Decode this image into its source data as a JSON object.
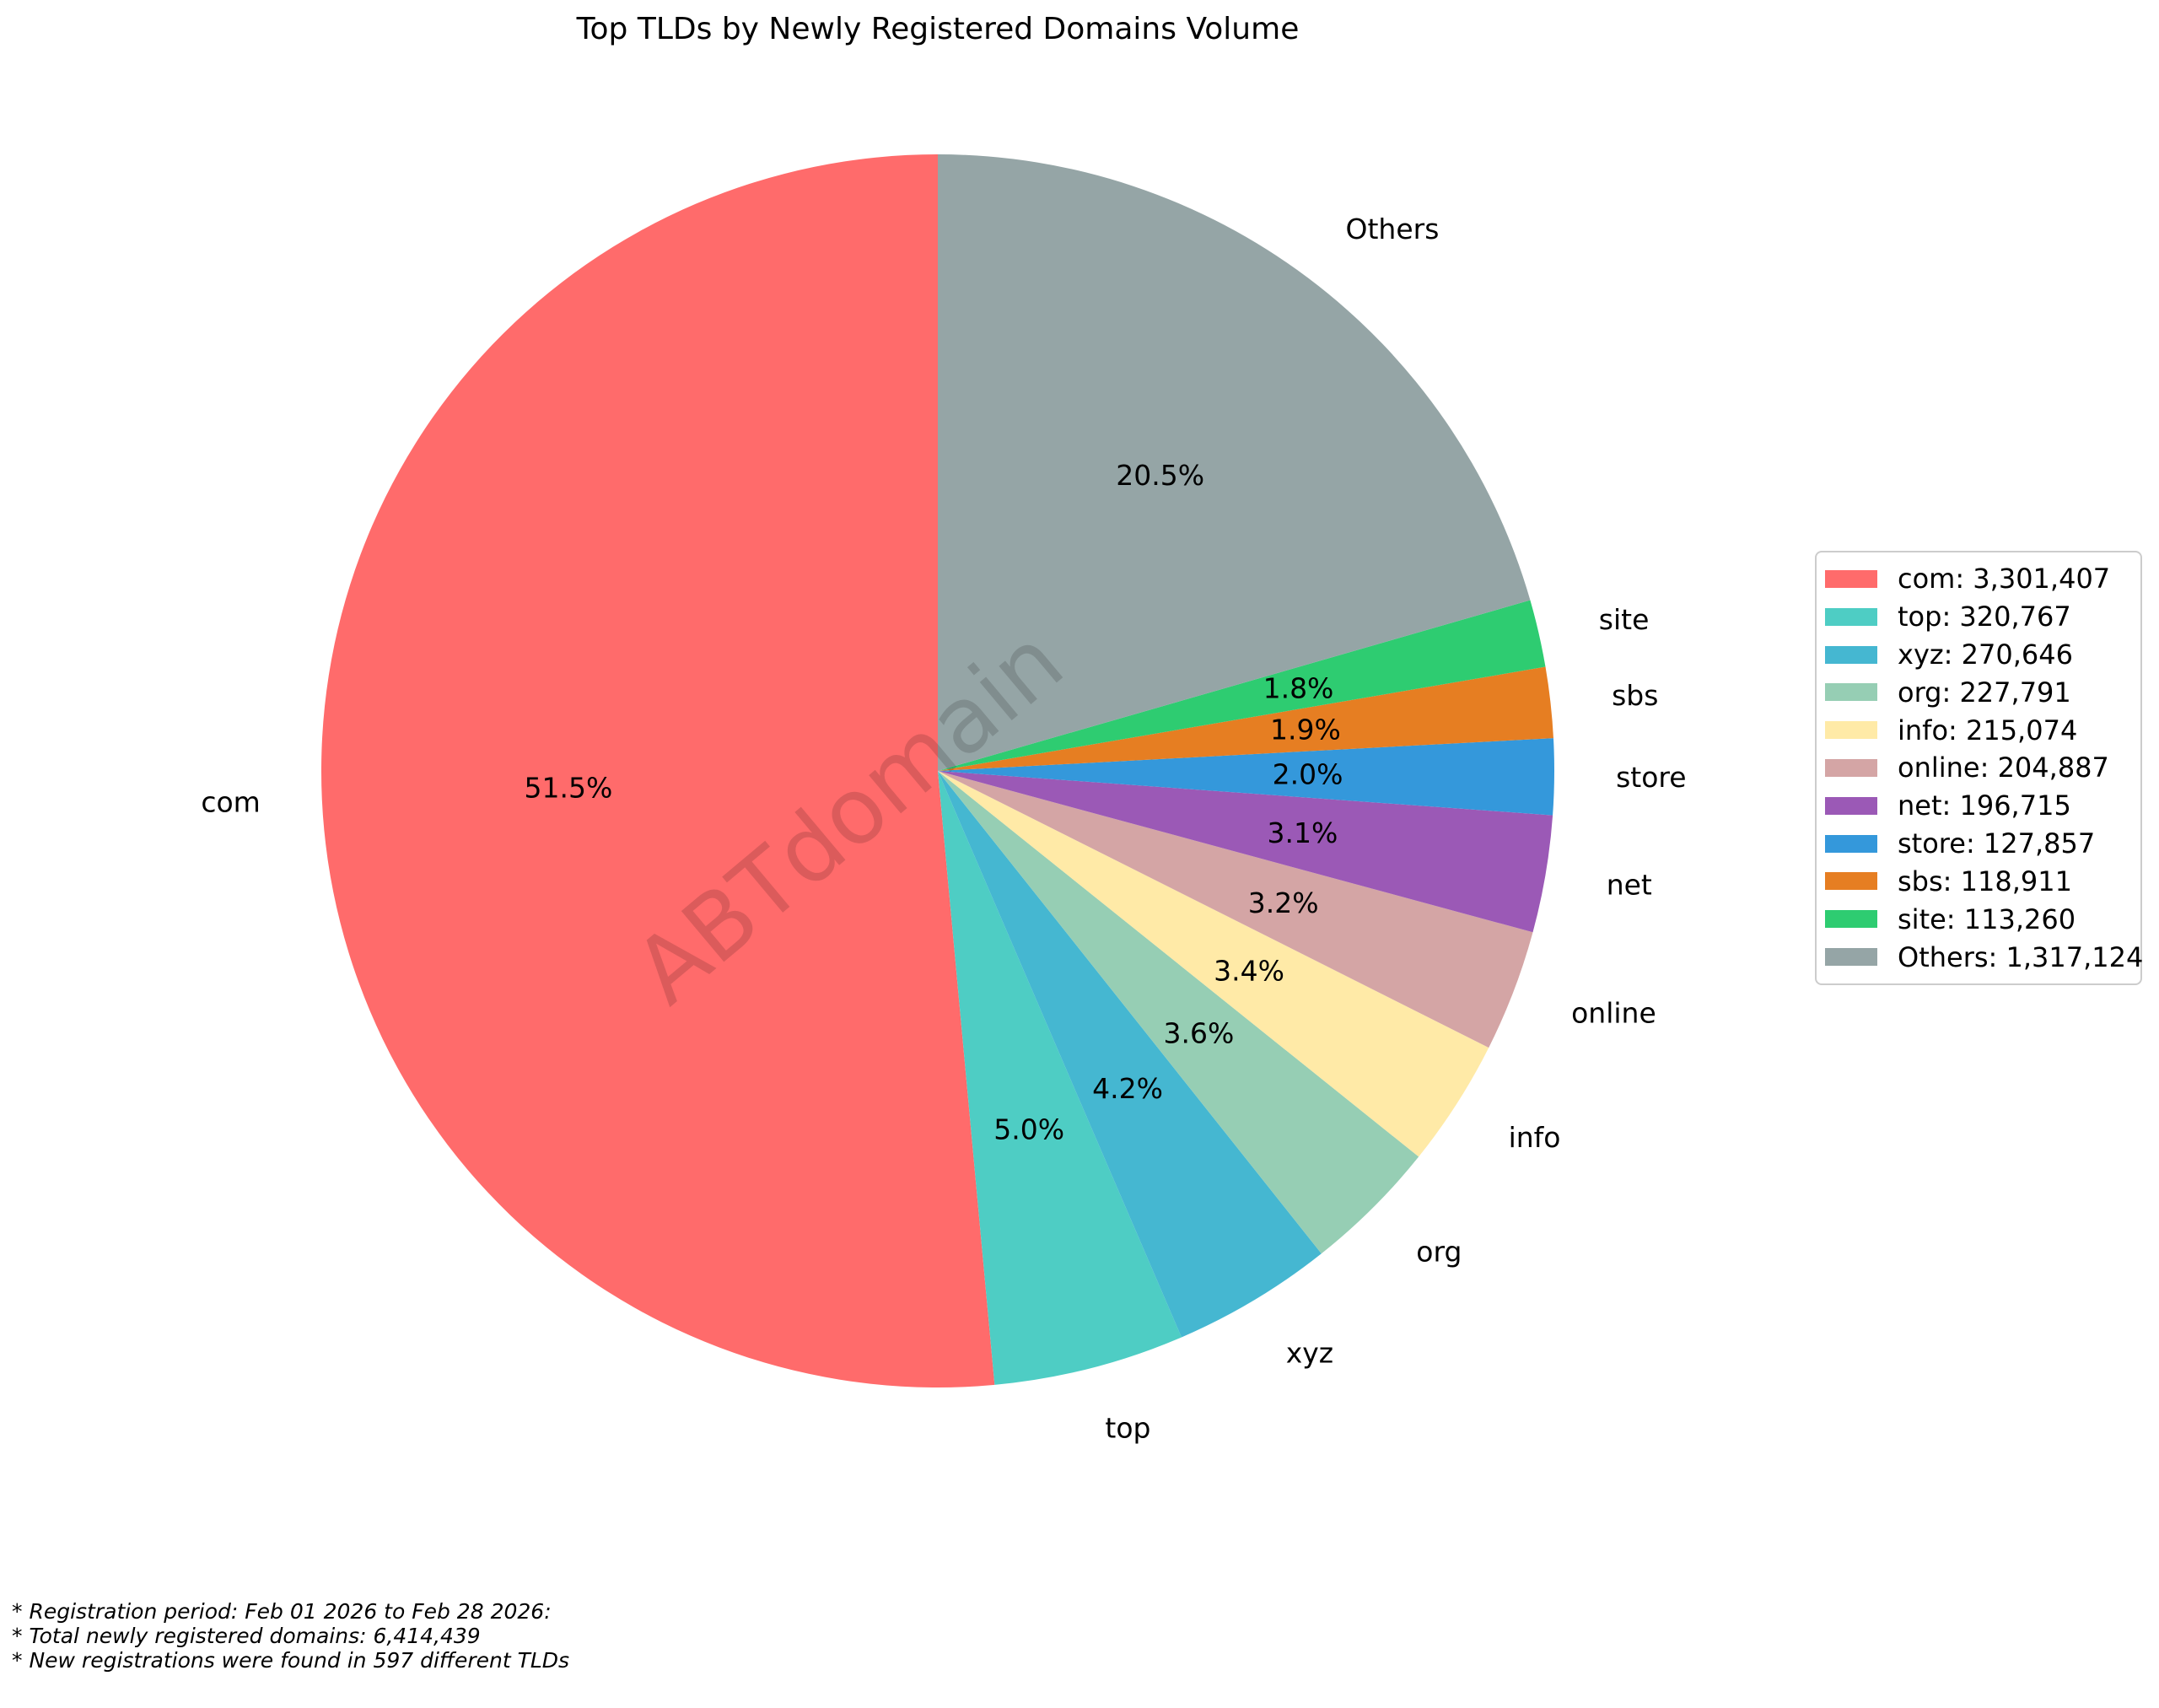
{
  "chart_data": {
    "type": "pie",
    "title": "Top TLDs by Newly Registered Domains Volume",
    "start_angle": 90,
    "direction": "counterclockwise",
    "pct_distance": 0.6,
    "label_distance": 1.1,
    "legend_position": "right",
    "grid": false,
    "watermark": "ABTdomain",
    "slices": [
      {
        "label": "com",
        "value": 3301407,
        "value_display": "3,301,407",
        "pct_display": "51.5%",
        "legend_label": "com: 3,301,407",
        "color": "#FF6B6B"
      },
      {
        "label": "top",
        "value": 320767,
        "value_display": "320,767",
        "pct_display": "5.0%",
        "legend_label": "top: 320,767",
        "color": "#4ECDC4"
      },
      {
        "label": "xyz",
        "value": 270646,
        "value_display": "270,646",
        "pct_display": "4.2%",
        "legend_label": "xyz: 270,646",
        "color": "#45B7D1"
      },
      {
        "label": "org",
        "value": 227791,
        "value_display": "227,791",
        "pct_display": "3.6%",
        "legend_label": "org: 227,791",
        "color": "#96CEB4"
      },
      {
        "label": "info",
        "value": 215074,
        "value_display": "215,074",
        "pct_display": "3.4%",
        "legend_label": "info: 215,074",
        "color": "#FFEAA7"
      },
      {
        "label": "online",
        "value": 204887,
        "value_display": "204,887",
        "pct_display": "3.2%",
        "legend_label": "online: 204,887",
        "color": "#D4A5A5"
      },
      {
        "label": "net",
        "value": 196715,
        "value_display": "196,715",
        "pct_display": "3.1%",
        "legend_label": "net: 196,715",
        "color": "#9B59B6"
      },
      {
        "label": "store",
        "value": 127857,
        "value_display": "127,857",
        "pct_display": "2.0%",
        "legend_label": "store: 127,857",
        "color": "#3498DB"
      },
      {
        "label": "sbs",
        "value": 118911,
        "value_display": "118,911",
        "pct_display": "1.9%",
        "legend_label": "sbs: 118,911",
        "color": "#E67E22"
      },
      {
        "label": "site",
        "value": 113260,
        "value_display": "113,260",
        "pct_display": "1.8%",
        "legend_label": "site: 113,260",
        "color": "#2ECC71"
      },
      {
        "label": "Others",
        "value": 1317124,
        "value_display": "1,317,124",
        "pct_display": "20.5%",
        "legend_label": "Others: 1,317,124",
        "color": "#95A5A6"
      }
    ],
    "footnotes": [
      "* Registration period: Feb 01 2026 to Feb 28 2026:",
      "* Total newly registered domains: 6,414,439",
      "* New registrations were found in 597 different TLDs"
    ]
  }
}
